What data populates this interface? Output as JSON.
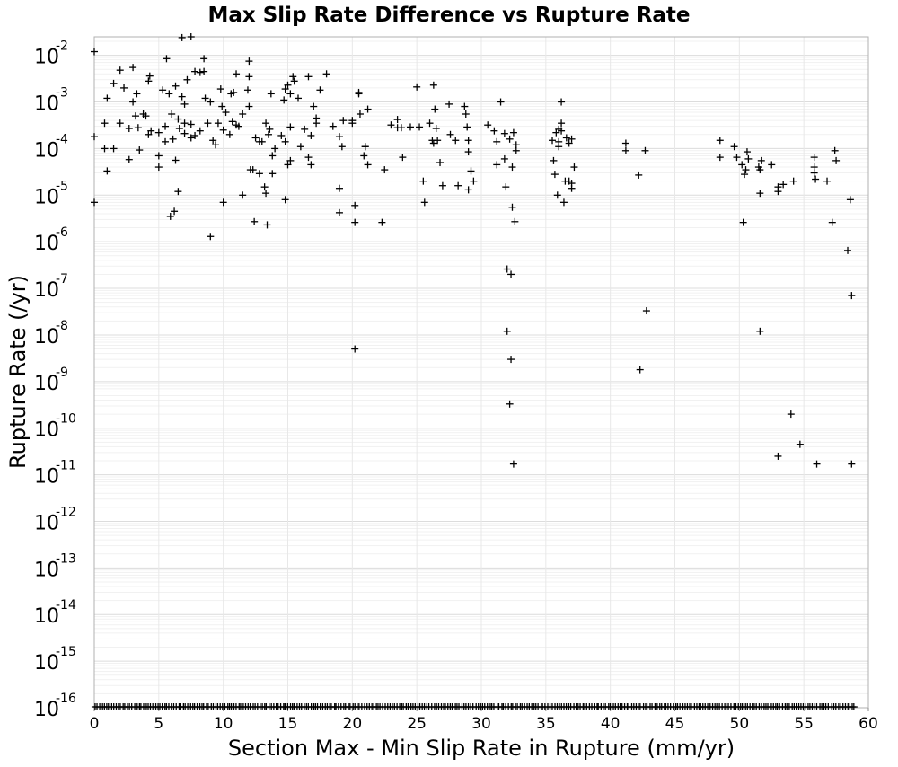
{
  "chart_data": {
    "type": "scatter",
    "title": "Max Slip Rate Difference vs Rupture Rate",
    "xlabel": "Section Max - Min Slip Rate in Rupture (mm/yr)",
    "ylabel": "Rupture Rate (/yr)",
    "xlim": [
      0,
      60
    ],
    "ylim": [
      1e-16,
      0.025
    ],
    "yscale": "log",
    "grid": true,
    "marker": "+",
    "marker_color": "#000000",
    "xticks": [
      "0",
      "5",
      "10",
      "15",
      "20",
      "25",
      "30",
      "35",
      "40",
      "45",
      "50",
      "55",
      "60"
    ],
    "yticks": [
      {
        "exp": -16
      },
      {
        "exp": -15
      },
      {
        "exp": -14
      },
      {
        "exp": -13
      },
      {
        "exp": -12
      },
      {
        "exp": -11
      },
      {
        "exp": -10
      },
      {
        "exp": -9
      },
      {
        "exp": -8
      },
      {
        "exp": -7
      },
      {
        "exp": -6
      },
      {
        "exp": -5
      },
      {
        "exp": -4
      },
      {
        "exp": -3
      },
      {
        "exp": -2
      }
    ],
    "ytick_base": "10",
    "points": [
      [
        0.0,
        0.012
      ],
      [
        0.0,
        0.00018
      ],
      [
        0.0,
        7e-06
      ],
      [
        0.8,
        0.00035
      ],
      [
        0.8,
        0.0001
      ],
      [
        1.0,
        3.3e-05
      ],
      [
        1.0,
        0.0012
      ],
      [
        1.5,
        0.0001
      ],
      [
        1.5,
        0.0025
      ],
      [
        2.0,
        0.0048
      ],
      [
        2.0,
        0.00035
      ],
      [
        2.3,
        0.002
      ],
      [
        2.7,
        0.00027
      ],
      [
        2.7,
        5.8e-05
      ],
      [
        3.0,
        0.001
      ],
      [
        3.0,
        0.0055
      ],
      [
        3.2,
        0.0005
      ],
      [
        3.3,
        0.0015
      ],
      [
        3.4,
        0.00028
      ],
      [
        3.5,
        9.3e-05
      ],
      [
        3.8,
        0.00055
      ],
      [
        4.0,
        0.0005
      ],
      [
        4.2,
        0.0002
      ],
      [
        4.2,
        0.0028
      ],
      [
        4.3,
        0.0036
      ],
      [
        4.4,
        0.00024
      ],
      [
        5.0,
        0.00022
      ],
      [
        5.0,
        7e-05
      ],
      [
        5.0,
        4e-05
      ],
      [
        5.3,
        0.0018
      ],
      [
        5.5,
        0.00014
      ],
      [
        5.5,
        0.0003
      ],
      [
        5.6,
        0.0085
      ],
      [
        5.8,
        0.0015
      ],
      [
        5.9,
        3.5e-06
      ],
      [
        6.0,
        0.00055
      ],
      [
        6.1,
        0.00016
      ],
      [
        6.2,
        4.5e-06
      ],
      [
        6.3,
        5.6e-05
      ],
      [
        6.3,
        0.0022
      ],
      [
        6.5,
        0.00043
      ],
      [
        6.5,
        1.2e-05
      ],
      [
        6.6,
        0.00027
      ],
      [
        6.8,
        0.024
      ],
      [
        6.8,
        0.0013
      ],
      [
        7.0,
        0.00035
      ],
      [
        7.0,
        0.0009
      ],
      [
        7.0,
        0.00021
      ],
      [
        7.2,
        0.003
      ],
      [
        7.5,
        0.025
      ],
      [
        7.5,
        0.00033
      ],
      [
        7.5,
        0.00017
      ],
      [
        7.8,
        0.0045
      ],
      [
        7.8,
        0.00019
      ],
      [
        8.2,
        0.0043
      ],
      [
        8.2,
        0.00024
      ],
      [
        8.5,
        0.0085
      ],
      [
        8.5,
        0.0045
      ],
      [
        8.6,
        0.0012
      ],
      [
        8.8,
        0.00035
      ],
      [
        9.0,
        1.3e-06
      ],
      [
        9.0,
        0.001
      ],
      [
        9.2,
        0.00015
      ],
      [
        9.4,
        0.00012
      ],
      [
        9.6,
        0.00035
      ],
      [
        9.8,
        0.0019
      ],
      [
        9.9,
        0.0008
      ],
      [
        10.0,
        0.00025
      ],
      [
        10.0,
        7e-06
      ],
      [
        10.2,
        0.0006
      ],
      [
        10.5,
        0.0002
      ],
      [
        10.6,
        0.0015
      ],
      [
        10.7,
        0.00038
      ],
      [
        10.8,
        0.0016
      ],
      [
        11.0,
        0.00032
      ],
      [
        11.0,
        0.004
      ],
      [
        11.2,
        0.0003
      ],
      [
        11.5,
        0.00055
      ],
      [
        11.5,
        1e-05
      ],
      [
        11.9,
        0.0018
      ],
      [
        12.0,
        0.0008
      ],
      [
        12.0,
        0.0075
      ],
      [
        12.0,
        0.0035
      ],
      [
        12.1,
        3.5e-05
      ],
      [
        12.3,
        3.5e-05
      ],
      [
        12.4,
        2.7e-06
      ],
      [
        12.5,
        0.00017
      ],
      [
        12.8,
        0.00014
      ],
      [
        12.8,
        2.9e-05
      ],
      [
        13.0,
        0.00014
      ],
      [
        13.2,
        1.5e-05
      ],
      [
        13.3,
        0.00035
      ],
      [
        13.3,
        1.1e-05
      ],
      [
        13.4,
        2.3e-06
      ],
      [
        13.5,
        0.0002
      ],
      [
        13.6,
        0.00026
      ],
      [
        13.7,
        0.0015
      ],
      [
        13.8,
        2.9e-05
      ],
      [
        13.8,
        7e-05
      ],
      [
        14.0,
        0.0001
      ],
      [
        14.5,
        0.00019
      ],
      [
        14.7,
        0.0011
      ],
      [
        14.8,
        0.00014
      ],
      [
        14.8,
        8e-06
      ],
      [
        14.8,
        0.0019
      ],
      [
        15.0,
        0.0023
      ],
      [
        15.0,
        4.5e-05
      ],
      [
        15.2,
        0.0015
      ],
      [
        15.2,
        0.00029
      ],
      [
        15.2,
        5.5e-05
      ],
      [
        15.4,
        0.0035
      ],
      [
        15.5,
        0.0028
      ],
      [
        15.8,
        0.0012
      ],
      [
        16.0,
        0.00011
      ],
      [
        16.3,
        0.00026
      ],
      [
        16.6,
        0.0035
      ],
      [
        16.6,
        6.5e-05
      ],
      [
        16.8,
        0.00019
      ],
      [
        16.8,
        4.5e-05
      ],
      [
        17.0,
        0.0008
      ],
      [
        17.2,
        0.00045
      ],
      [
        17.2,
        0.00035
      ],
      [
        17.5,
        0.0018
      ],
      [
        18.0,
        0.004
      ],
      [
        18.5,
        0.0003
      ],
      [
        19.0,
        0.00018
      ],
      [
        19.0,
        1.4e-05
      ],
      [
        19.0,
        4.2e-06
      ],
      [
        19.2,
        0.00011
      ],
      [
        19.3,
        0.0004
      ],
      [
        20.0,
        0.00035
      ],
      [
        20.0,
        0.0004
      ],
      [
        20.2,
        6e-06
      ],
      [
        20.2,
        2.6e-06
      ],
      [
        20.2,
        5e-09
      ],
      [
        20.5,
        0.0015
      ],
      [
        20.5,
        0.0016
      ],
      [
        20.6,
        0.00055
      ],
      [
        20.9,
        7e-05
      ],
      [
        21.0,
        0.00011
      ],
      [
        21.0,
        0.00011
      ],
      [
        21.2,
        4.5e-05
      ],
      [
        21.2,
        0.0007
      ],
      [
        22.3,
        2.6e-06
      ],
      [
        22.5,
        3.5e-05
      ],
      [
        23.0,
        0.00032
      ],
      [
        23.5,
        0.00028
      ],
      [
        23.5,
        0.00042
      ],
      [
        23.8,
        0.00028
      ],
      [
        23.9,
        6.5e-05
      ],
      [
        24.5,
        0.00029
      ],
      [
        25.0,
        0.0021
      ],
      [
        25.2,
        0.00029
      ],
      [
        25.5,
        2e-05
      ],
      [
        25.6,
        7e-06
      ],
      [
        26.0,
        0.00035
      ],
      [
        26.2,
        0.00015
      ],
      [
        26.3,
        0.0023
      ],
      [
        26.3,
        0.00013
      ],
      [
        26.4,
        0.0007
      ],
      [
        26.5,
        0.00027
      ],
      [
        26.6,
        0.00015
      ],
      [
        26.8,
        5e-05
      ],
      [
        27.0,
        1.6e-05
      ],
      [
        27.5,
        0.0009
      ],
      [
        27.6,
        0.0002
      ],
      [
        28.0,
        0.00015
      ],
      [
        28.2,
        1.6e-05
      ],
      [
        28.7,
        0.0008
      ],
      [
        28.8,
        0.00055
      ],
      [
        28.9,
        0.00029
      ],
      [
        29.0,
        8.5e-05
      ],
      [
        29.0,
        0.00015
      ],
      [
        29.0,
        1.3e-05
      ],
      [
        29.2,
        3.3e-05
      ],
      [
        29.4,
        2e-05
      ],
      [
        30.5,
        0.00032
      ],
      [
        31.0,
        0.00024
      ],
      [
        31.2,
        0.00014
      ],
      [
        31.2,
        4.5e-05
      ],
      [
        31.5,
        0.001
      ],
      [
        31.8,
        0.00021
      ],
      [
        31.8,
        6e-05
      ],
      [
        31.9,
        1.5e-05
      ],
      [
        32.0,
        2.6e-07
      ],
      [
        32.0,
        1.2e-08
      ],
      [
        32.2,
        0.00016
      ],
      [
        32.2,
        3.3e-10
      ],
      [
        32.3,
        2e-07
      ],
      [
        32.3,
        3e-09
      ],
      [
        32.4,
        4e-05
      ],
      [
        32.4,
        5.5e-06
      ],
      [
        32.5,
        0.00022
      ],
      [
        32.5,
        1.7e-11
      ],
      [
        32.6,
        2.7e-06
      ],
      [
        32.7,
        0.00012
      ],
      [
        32.7,
        9e-05
      ],
      [
        35.5,
        0.00015
      ],
      [
        35.6,
        5.5e-05
      ],
      [
        35.7,
        2.8e-05
      ],
      [
        35.8,
        0.00022
      ],
      [
        35.9,
        1e-05
      ],
      [
        36.0,
        0.00026
      ],
      [
        36.0,
        0.00014
      ],
      [
        36.0,
        0.00011
      ],
      [
        36.2,
        0.00035
      ],
      [
        36.2,
        0.001
      ],
      [
        36.2,
        0.00024
      ],
      [
        36.4,
        7e-06
      ],
      [
        36.5,
        2e-05
      ],
      [
        36.6,
        0.00017
      ],
      [
        36.8,
        0.00013
      ],
      [
        36.8,
        2e-05
      ],
      [
        37.0,
        1.8e-05
      ],
      [
        37.0,
        1.4e-05
      ],
      [
        37.0,
        0.00016
      ],
      [
        37.2,
        4e-05
      ],
      [
        41.2,
        0.00013
      ],
      [
        41.2,
        9e-05
      ],
      [
        42.2,
        2.7e-05
      ],
      [
        42.3,
        1.8e-09
      ],
      [
        42.7,
        9e-05
      ],
      [
        42.8,
        3.3e-08
      ],
      [
        48.5,
        0.00015
      ],
      [
        48.5,
        6.5e-05
      ],
      [
        49.6,
        0.00011
      ],
      [
        49.8,
        6.5e-05
      ],
      [
        50.2,
        4.5e-05
      ],
      [
        50.3,
        2.6e-06
      ],
      [
        50.4,
        2.8e-05
      ],
      [
        50.5,
        3.5e-05
      ],
      [
        50.6,
        8.5e-05
      ],
      [
        50.7,
        6e-05
      ],
      [
        51.5,
        4e-05
      ],
      [
        51.6,
        1.2e-08
      ],
      [
        51.6,
        1.1e-05
      ],
      [
        51.6,
        3.5e-05
      ],
      [
        51.7,
        5.5e-05
      ],
      [
        52.5,
        4.5e-05
      ],
      [
        53.0,
        1.5e-05
      ],
      [
        53.0,
        1.2e-05
      ],
      [
        53.0,
        2.5e-11
      ],
      [
        53.4,
        1.7e-05
      ],
      [
        54.0,
        2e-10
      ],
      [
        54.2,
        2e-05
      ],
      [
        54.7,
        4.5e-11
      ],
      [
        55.8,
        6.5e-05
      ],
      [
        55.8,
        4e-05
      ],
      [
        55.8,
        3e-05
      ],
      [
        55.9,
        2.2e-05
      ],
      [
        56.0,
        1.7e-11
      ],
      [
        56.8,
        2e-05
      ],
      [
        57.2,
        2.6e-06
      ],
      [
        57.4,
        9e-05
      ],
      [
        57.5,
        5.5e-05
      ],
      [
        58.4,
        6.5e-07
      ],
      [
        58.6,
        8e-06
      ],
      [
        58.7,
        7e-08
      ],
      [
        58.7,
        1.7e-11
      ]
    ],
    "floor_value": 1e-16,
    "floor_x_range": [
      0,
      59
    ]
  }
}
